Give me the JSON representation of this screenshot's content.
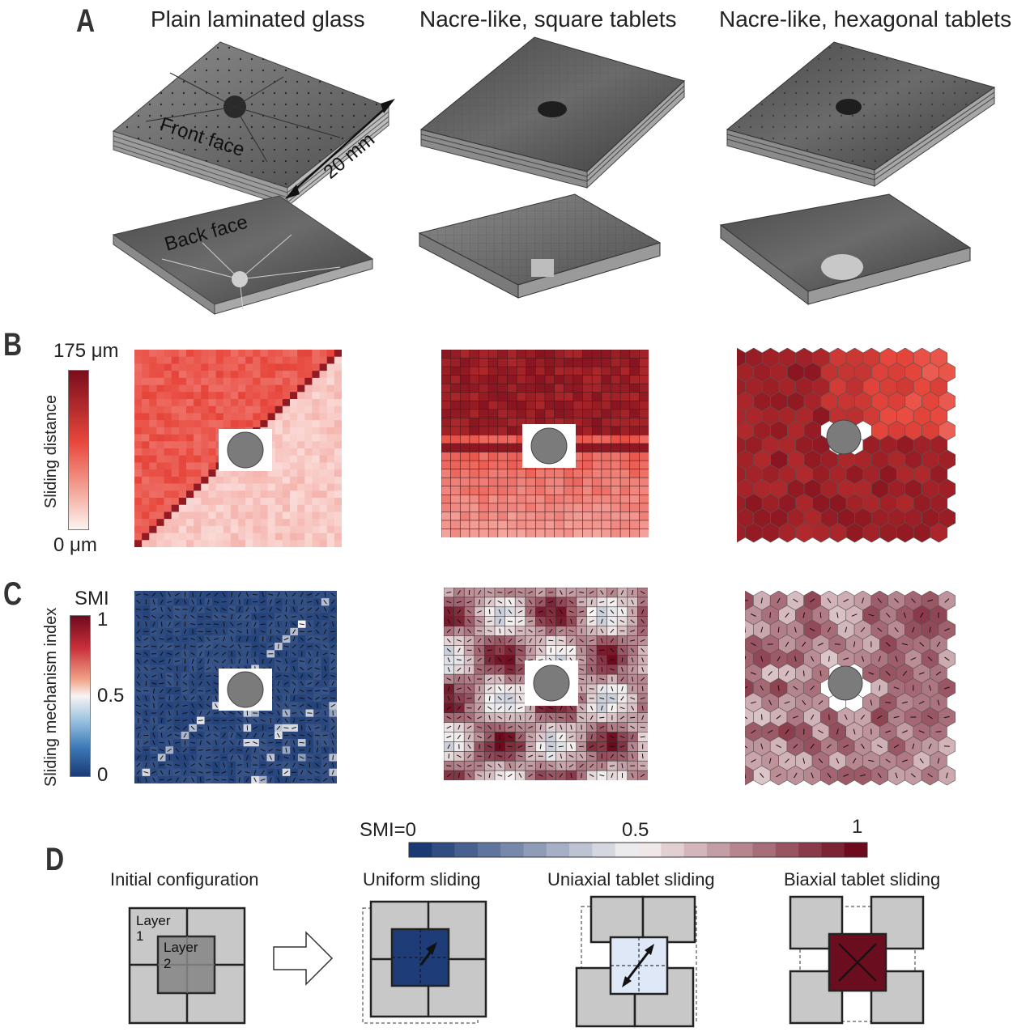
{
  "panels": {
    "a": {
      "label": "A"
    },
    "b": {
      "label": "B"
    },
    "c": {
      "label": "C"
    },
    "d": {
      "label": "D"
    }
  },
  "columns": [
    {
      "title": "Plain laminated glass"
    },
    {
      "title": "Nacre-like, square tablets"
    },
    {
      "title": "Nacre-like, hexagonal tablets"
    }
  ],
  "panel_a": {
    "front_face": "Front face",
    "back_face": "Back face",
    "scale": "20 mm"
  },
  "panel_b": {
    "colorbar_max": "175 μm",
    "colorbar_min": "0 μm",
    "colorbar_title": "Sliding distance",
    "colors": {
      "low": "#fdf3f0",
      "mid": "#e8473c",
      "high": "#7a0d1c"
    }
  },
  "panel_c": {
    "colorbar_header": "SMI",
    "colorbar_title": "Sliding mechanism index",
    "ticks": [
      "1",
      "0.5",
      "0"
    ],
    "colors": {
      "low": "#1a3a75",
      "mid": "#f7f4f3",
      "high": "#6d0a1e"
    }
  },
  "panel_d": {
    "colorbar_labels": [
      "SMI=0",
      "0.5",
      "1"
    ],
    "initial_title": "Initial configuration",
    "layer1": "Layer\n1",
    "layer2": "Layer\n2",
    "layer1_a": "Layer",
    "layer1_b": "1",
    "layer2_a": "Layer",
    "layer2_b": "2",
    "modes": [
      {
        "title": "Uniform sliding",
        "color": "#1d3c78"
      },
      {
        "title": "Uniaxial tablet sliding",
        "color": "#dfe8f7"
      },
      {
        "title": "Biaxial tablet sliding",
        "color": "#6a0d1f"
      }
    ]
  }
}
